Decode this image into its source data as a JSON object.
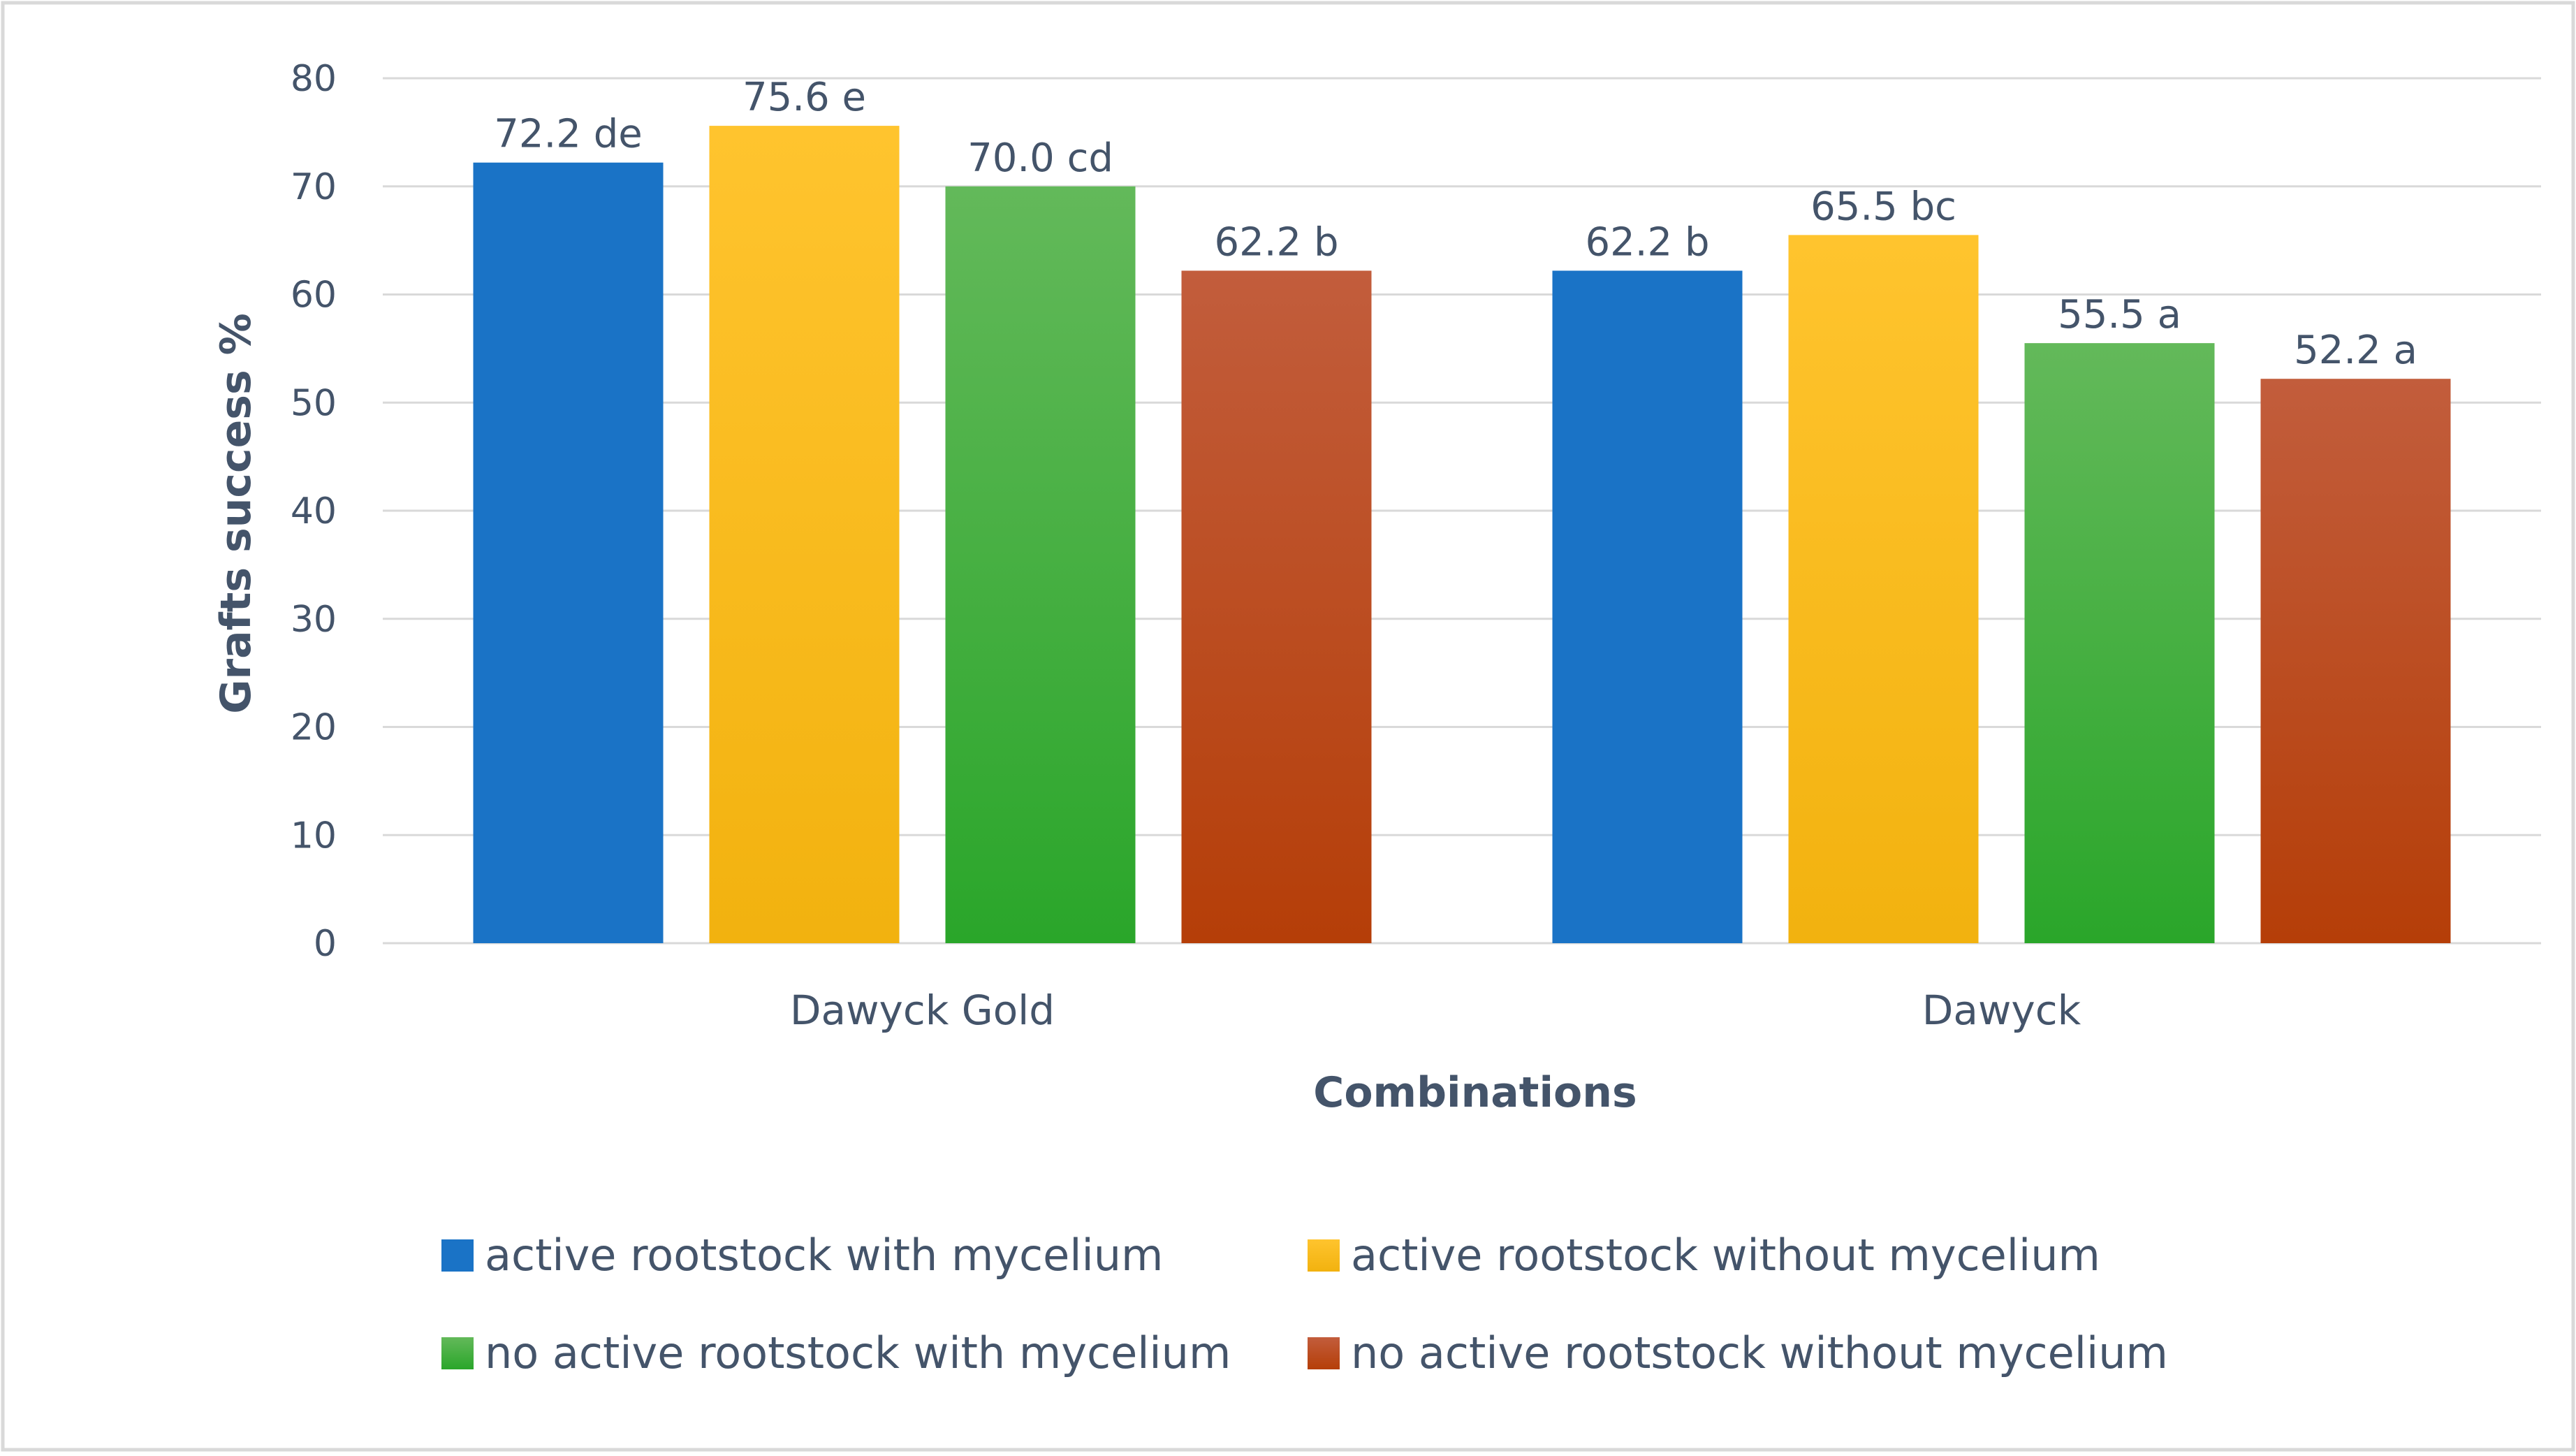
{
  "chart_data": {
    "type": "bar",
    "categories": [
      "Dawyck Gold",
      "Dawyck"
    ],
    "series": [
      {
        "name": "active rootstock with mycelium",
        "values": [
          72.2,
          62.2
        ],
        "labels": [
          "72.2 de",
          "62.2 b"
        ],
        "color_top": "#1a73c6",
        "color_bottom": "#1a73c6"
      },
      {
        "name": "active rootstock without mycelium",
        "values": [
          75.6,
          65.5
        ],
        "labels": [
          "75.6 e",
          "65.5 bc"
        ],
        "color_top": "#ffc42e",
        "color_bottom": "#f2b20f"
      },
      {
        "name": "no active rootstock with mycelium",
        "values": [
          70.0,
          55.5
        ],
        "labels": [
          "70.0 cd",
          "55.5 a"
        ],
        "color_top": "#63b95a",
        "color_bottom": "#2aa62a"
      },
      {
        "name": "no active rootstock without mycelium",
        "values": [
          62.2,
          52.2
        ],
        "labels": [
          "62.2 b",
          "52.2 a"
        ],
        "color_top": "#c25d3c",
        "color_bottom": "#b53e08"
      }
    ],
    "yticks": [
      "0",
      "10",
      "20",
      "30",
      "40",
      "50",
      "60",
      "70",
      "80"
    ],
    "title": "",
    "xlabel": "Combinations",
    "ylabel": "Grafts success %",
    "ylim": [
      0,
      80
    ],
    "grid": true,
    "legend_position": "bottom"
  },
  "colors": {
    "text": "#44546a",
    "grid": "#d9d9d9",
    "border": "#d9d9d9"
  }
}
